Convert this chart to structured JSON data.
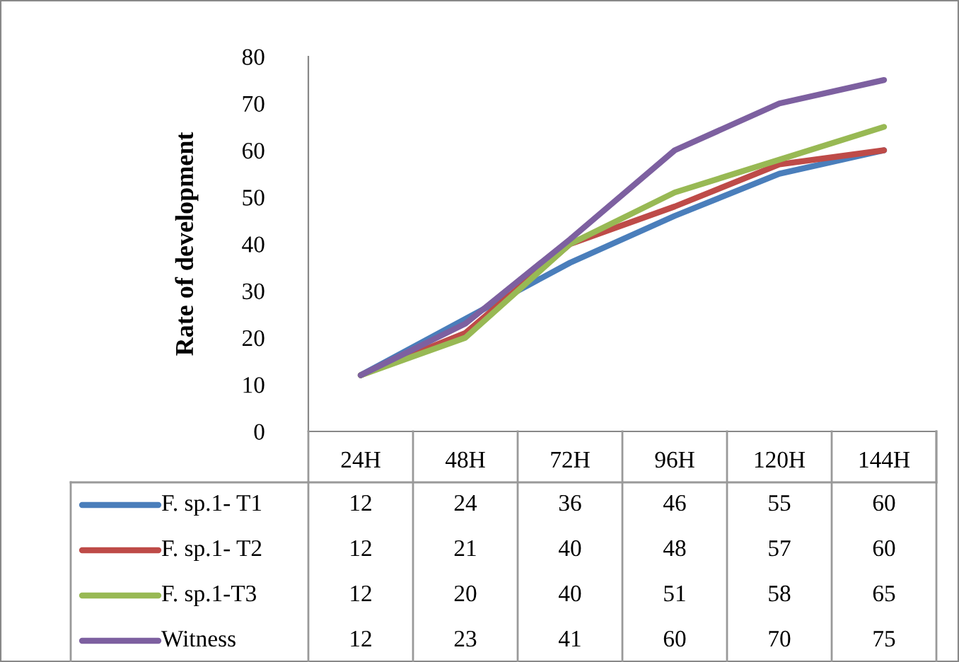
{
  "chart_data": {
    "type": "line",
    "ylabel": "Rate of development",
    "categories": [
      "24H",
      "48H",
      "72H",
      "96H",
      "120H",
      "144H"
    ],
    "series": [
      {
        "name": "F. sp.1- T1",
        "color": "#4a7ebb",
        "values": [
          12,
          24,
          36,
          46,
          55,
          60
        ]
      },
      {
        "name": "F. sp.1- T2",
        "color": "#be4b48",
        "values": [
          12,
          21,
          40,
          48,
          57,
          60
        ]
      },
      {
        "name": "F. sp.1-T3",
        "color": "#98b954",
        "values": [
          12,
          20,
          40,
          51,
          58,
          65
        ]
      },
      {
        "name": "Witness",
        "color": "#7d60a0",
        "values": [
          12,
          23,
          41,
          60,
          70,
          75
        ]
      }
    ],
    "ylim": [
      0,
      80
    ],
    "yticks": [
      0,
      10,
      20,
      30,
      40,
      50,
      60,
      70,
      80
    ],
    "grid": false,
    "legend": "bottom",
    "data_labels": true,
    "marker": "none",
    "line_style": "solid"
  }
}
